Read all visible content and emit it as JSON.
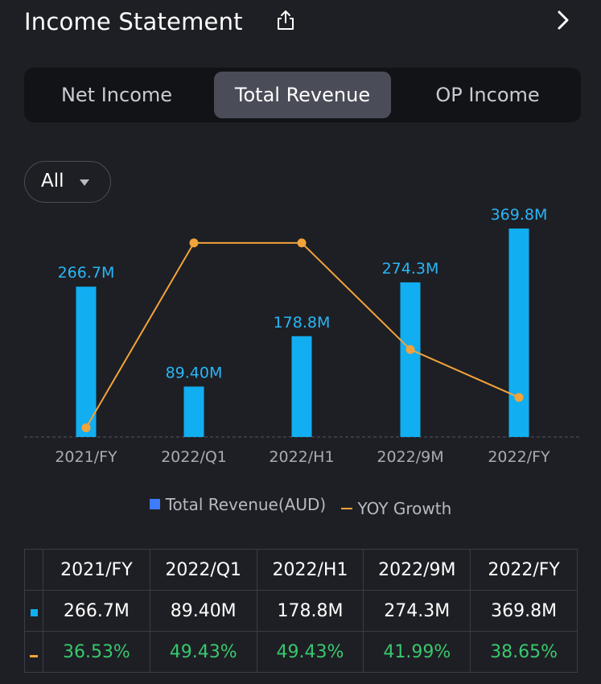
{
  "header": {
    "title": "Income Statement",
    "share_icon": "share-icon",
    "forward_icon": "chevron-right-icon"
  },
  "tabs": [
    {
      "label": "Net Income",
      "active": false
    },
    {
      "label": "Total Revenue",
      "active": true
    },
    {
      "label": "OP Income",
      "active": false
    }
  ],
  "filter": {
    "label": "All",
    "icon": "caret-down-icon"
  },
  "colors": {
    "bar": "#11aef2",
    "bar_legend": "#3d7bff",
    "line": "#f2a33a",
    "growth_text": "#38c76e",
    "bar_label": "#29b6f6"
  },
  "chart_data": {
    "type": "bar",
    "title": "Total Revenue",
    "categories": [
      "2021/FY",
      "2022/Q1",
      "2022/H1",
      "2022/9M",
      "2022/FY"
    ],
    "series": [
      {
        "name": "Total Revenue(AUD)",
        "type": "bar",
        "values": [
          266.7,
          89.4,
          178.8,
          274.3,
          369.8
        ],
        "labels": [
          "266.7M",
          "89.40M",
          "178.8M",
          "274.3M",
          "369.8M"
        ],
        "unit": "M AUD"
      },
      {
        "name": "YOY Growth",
        "type": "line",
        "values": [
          36.53,
          49.43,
          49.43,
          41.99,
          38.65
        ],
        "labels": [
          "36.53%",
          "49.43%",
          "49.43%",
          "41.99%",
          "38.65%"
        ],
        "unit": "%"
      }
    ],
    "bar_ylim": [
      0,
      369.8
    ],
    "line_ylim": [
      36.0,
      51.5
    ],
    "legend_position": "bottom-center",
    "grid": false
  },
  "table": {
    "headers": [
      "2021/FY",
      "2022/Q1",
      "2022/H1",
      "2022/9M",
      "2022/FY"
    ],
    "revenue_row": [
      "266.7M",
      "89.40M",
      "178.8M",
      "274.3M",
      "369.8M"
    ],
    "growth_row": [
      "36.53%",
      "49.43%",
      "49.43%",
      "41.99%",
      "38.65%"
    ]
  }
}
